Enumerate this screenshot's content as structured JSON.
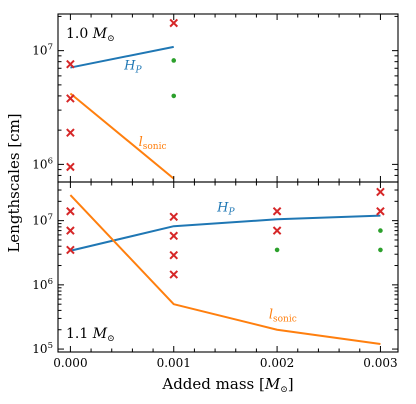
{
  "chart_data": {
    "type": "line",
    "xlabel": "Added mass [M⊙]",
    "ylabel": "Lengthscales [cm]",
    "xlim": [
      -0.00012,
      0.00317
    ],
    "x_ticks": [
      "0.000",
      "0.001",
      "0.002",
      "0.003"
    ],
    "x_tick_values": [
      0.0,
      0.001,
      0.002,
      0.003
    ],
    "colors": {
      "hp": "#1f77b4",
      "sonic": "#ff7f0e",
      "red_marker": "#d62728",
      "green_marker": "#2ca02c"
    },
    "panels": [
      {
        "label": "1.0 M⊙",
        "yscale": "log",
        "ylim": [
          700000,
          21000000
        ],
        "y_ticks": [
          {
            "base": "10",
            "exp": "6",
            "value": 1000000
          },
          {
            "base": "10",
            "exp": "7",
            "value": 10000000
          }
        ],
        "series": [
          {
            "name": "H_P",
            "label_text": "H",
            "label_sub": "P",
            "color": "#1f77b4",
            "x": [
              0.0,
              0.001
            ],
            "y": [
              7100000,
              10800000
            ]
          },
          {
            "name": "l_sonic",
            "label_text": "l",
            "label_sub": "sonic",
            "color": "#ff7f0e",
            "x": [
              0.0,
              0.001
            ],
            "y": [
              4200000,
              750000
            ]
          }
        ],
        "red_x": {
          "x": [
            0.0,
            0.0,
            0.0,
            0.0,
            0.001
          ],
          "y": [
            7600000,
            3800000,
            1900000,
            950000,
            17500000
          ]
        },
        "green_dots": {
          "x": [
            0.001,
            0.001
          ],
          "y": [
            8200000,
            4000000
          ]
        },
        "annotations": {
          "hp_label_at": [
            0.00052,
            6800000
          ],
          "sonic_label_at": [
            0.00066,
            1450000
          ]
        }
      },
      {
        "label": "1.1 M⊙",
        "yscale": "log",
        "ylim": [
          90000,
          40000000
        ],
        "y_ticks": [
          {
            "base": "10",
            "exp": "5",
            "value": 100000
          },
          {
            "base": "10",
            "exp": "6",
            "value": 1000000
          },
          {
            "base": "10",
            "exp": "7",
            "value": 10000000
          }
        ],
        "series": [
          {
            "name": "H_P",
            "label_text": "H",
            "label_sub": "P",
            "color": "#1f77b4",
            "x": [
              0.0,
              0.001,
              0.002,
              0.003
            ],
            "y": [
              3400000,
              8200000,
              10500000,
              12000000
            ]
          },
          {
            "name": "l_sonic",
            "label_text": "l",
            "label_sub": "sonic",
            "color": "#ff7f0e",
            "x": [
              0.0,
              0.001,
              0.002,
              0.003
            ],
            "y": [
              25000000,
              500000,
              200000,
              120000
            ]
          }
        ],
        "red_x": {
          "x": [
            0.0,
            0.0,
            0.0,
            0.001,
            0.001,
            0.001,
            0.001,
            0.002,
            0.002,
            0.003,
            0.003
          ],
          "y": [
            14000000,
            7000000,
            3500000,
            11500000,
            5800000,
            2900000,
            1450000,
            14000000,
            7000000,
            28000000,
            14000000
          ]
        },
        "green_dots": {
          "x": [
            0.002,
            0.003,
            0.003
          ],
          "y": [
            3500000,
            7000000,
            3500000
          ]
        },
        "annotations": {
          "hp_label_at": [
            0.00142,
            14000000
          ],
          "sonic_label_at": [
            0.00192,
            300000
          ]
        }
      }
    ]
  }
}
